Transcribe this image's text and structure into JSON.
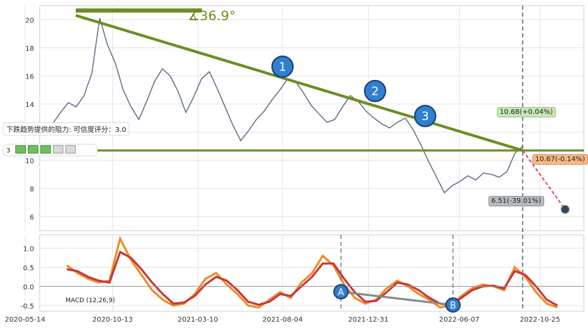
{
  "chart_data": [
    {
      "type": "line",
      "panel": "price",
      "ylim": [
        5,
        21
      ],
      "y_ticks": [
        6,
        8,
        10,
        12,
        14,
        16,
        18,
        20
      ],
      "grid": true,
      "series": [
        {
          "values": [
            12.6,
            13.4,
            14.1,
            13.8,
            14.6,
            16.2,
            20.1,
            18.2,
            16.9,
            15.0,
            13.8,
            12.9,
            14.2,
            15.6,
            16.5,
            16.0,
            14.9,
            13.4,
            14.5,
            15.8,
            16.3,
            15.1,
            13.8,
            12.5,
            11.4,
            12.1,
            12.9,
            13.5,
            14.3,
            15.0,
            15.8,
            15.6,
            14.8,
            13.9,
            13.3,
            12.7,
            12.9,
            13.8,
            14.6,
            14.2,
            13.5,
            13.0,
            12.6,
            12.3,
            12.7,
            13.0,
            12.2,
            11.1,
            9.9,
            8.8,
            7.7,
            8.2,
            8.5,
            8.9,
            8.6,
            9.1,
            9.0,
            8.8,
            9.2,
            10.5,
            11.0
          ],
          "x_start": "2020-07-01",
          "x_end": "2022-09-25"
        }
      ],
      "annotations": {
        "angle_label": "∡36.9°",
        "resistance_label": "下跌趋势提供的阻力: 可信度评分：3.0",
        "rating_value": "3",
        "callouts": [
          {
            "text": "10.68(+0.04%)",
            "color": "#c9e6b8"
          },
          {
            "text": "10.67(-0.14%)",
            "color": "#f7b98a"
          },
          {
            "text": "6.51(-39.01%)",
            "color": "#b9bcc0"
          }
        ],
        "wave_labels": [
          "1",
          "2",
          "3"
        ],
        "support_level": 10.7,
        "forecast_target": 6.51,
        "trend_line": {
          "start": [
            "2020-08-10",
            20.3
          ],
          "end": [
            "2022-09-25",
            10.7
          ]
        }
      }
    },
    {
      "type": "line",
      "panel": "indicator",
      "label": "MACD (12,26,9)",
      "ylim": [
        -0.65,
        1.35
      ],
      "y_ticks": [
        -0.5,
        0.0,
        0.5,
        1.0
      ],
      "x_tick_labels": [
        "2020-05-14",
        "2020-10-13",
        "2021-03-10",
        "2021-08-04",
        "2021-12-31",
        "2022-06-07",
        "2022-10-25"
      ],
      "series": [
        {
          "values": [
            0.55,
            0.35,
            0.2,
            0.1,
            0.15,
            1.25,
            0.7,
            0.3,
            -0.1,
            -0.35,
            -0.5,
            -0.45,
            -0.2,
            0.2,
            0.35,
            0.05,
            -0.2,
            -0.5,
            -0.55,
            -0.35,
            -0.15,
            -0.3,
            0.1,
            0.35,
            0.8,
            0.55,
            0.05,
            -0.3,
            -0.45,
            -0.35,
            -0.05,
            0.15,
            0.0,
            -0.2,
            -0.35,
            -0.55,
            -0.5,
            -0.25,
            -0.05,
            0.05,
            0.0,
            -0.1,
            0.5,
            0.25,
            -0.15,
            -0.45,
            -0.55
          ]
        },
        {
          "values": [
            0.45,
            0.4,
            0.25,
            0.15,
            0.1,
            0.9,
            0.75,
            0.45,
            0.1,
            -0.2,
            -0.45,
            -0.42,
            -0.25,
            0.05,
            0.25,
            0.15,
            -0.1,
            -0.4,
            -0.48,
            -0.4,
            -0.2,
            -0.25,
            0.0,
            0.25,
            0.6,
            0.6,
            0.2,
            -0.15,
            -0.4,
            -0.38,
            -0.15,
            0.1,
            0.05,
            -0.1,
            -0.3,
            -0.45,
            -0.5,
            -0.3,
            -0.1,
            0.0,
            0.02,
            -0.05,
            0.4,
            0.3,
            0.0,
            -0.35,
            -0.5
          ]
        }
      ],
      "divergence_labels": [
        "A",
        "B"
      ]
    }
  ]
}
